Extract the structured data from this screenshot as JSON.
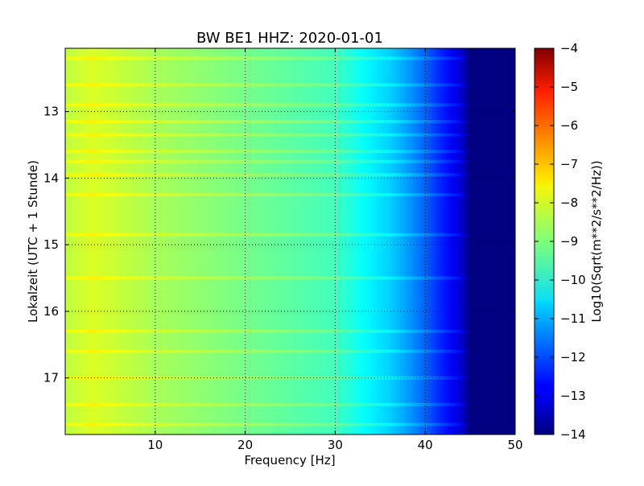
{
  "chart_data": {
    "type": "heatmap",
    "title": "BW BE1 HHZ: 2020-01-01",
    "xlabel": "Frequency [Hz]",
    "ylabel": "Lokalzeit (UTC + 1 Stunde)",
    "xlim": [
      0,
      50
    ],
    "ylim": [
      12.05,
      17.85
    ],
    "y_inverted": true,
    "x_ticks": [
      10,
      20,
      30,
      40,
      50
    ],
    "y_ticks": [
      13,
      14,
      15,
      16,
      17
    ],
    "grid": true,
    "colormap": "jet",
    "colorbar": {
      "label": "Log10(Sqrt(m**2/s**2/Hz))",
      "range": [
        -14,
        -4
      ],
      "ticks": [
        -4,
        -5,
        -6,
        -7,
        -8,
        -9,
        -10,
        -11,
        -12,
        -13,
        -14
      ]
    },
    "spectrum_profile": {
      "frequency_hz": [
        0,
        3,
        10,
        20,
        30,
        33,
        36,
        38,
        40,
        42,
        44,
        45,
        50
      ],
      "log10_amplitude": [
        -8.4,
        -8.1,
        -8.6,
        -9.1,
        -9.6,
        -10.2,
        -10.7,
        -11.2,
        -11.8,
        -12.5,
        -13.2,
        -14,
        -14
      ]
    },
    "bright_bands_hour": [
      12.2,
      12.6,
      12.9,
      13.15,
      13.35,
      13.6,
      13.75,
      13.95,
      14.25,
      14.85,
      15.5,
      16.3,
      16.6,
      17.0,
      17.4,
      17.7
    ]
  }
}
